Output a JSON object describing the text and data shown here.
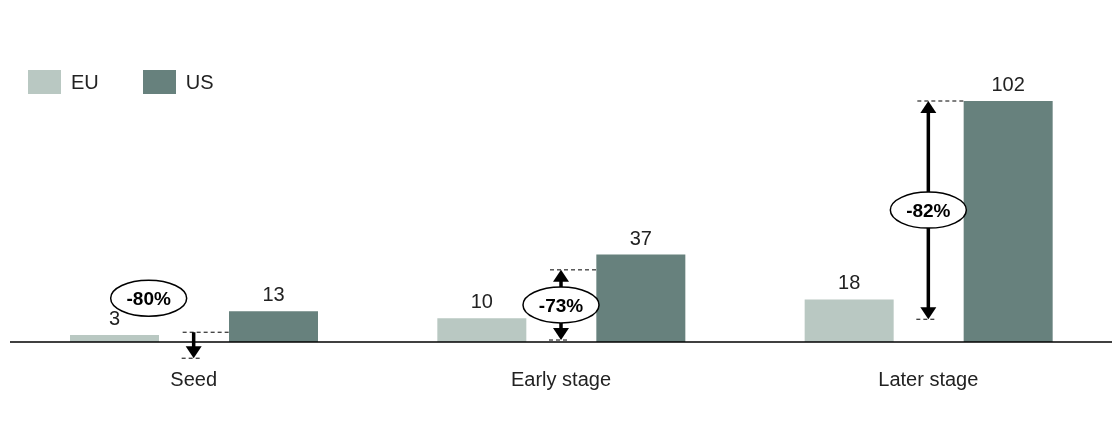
{
  "chart_data": {
    "type": "bar",
    "categories": [
      "Seed",
      "Early stage",
      "Later stage"
    ],
    "series": [
      {
        "name": "EU",
        "color": "#b9c8c2",
        "values": [
          3,
          10,
          18
        ]
      },
      {
        "name": "US",
        "color": "#67817d",
        "values": [
          13,
          37,
          102
        ]
      }
    ],
    "data_labels": true,
    "legend": "top left",
    "annotations": [
      "-80%",
      "-73%",
      "-82%"
    ]
  }
}
